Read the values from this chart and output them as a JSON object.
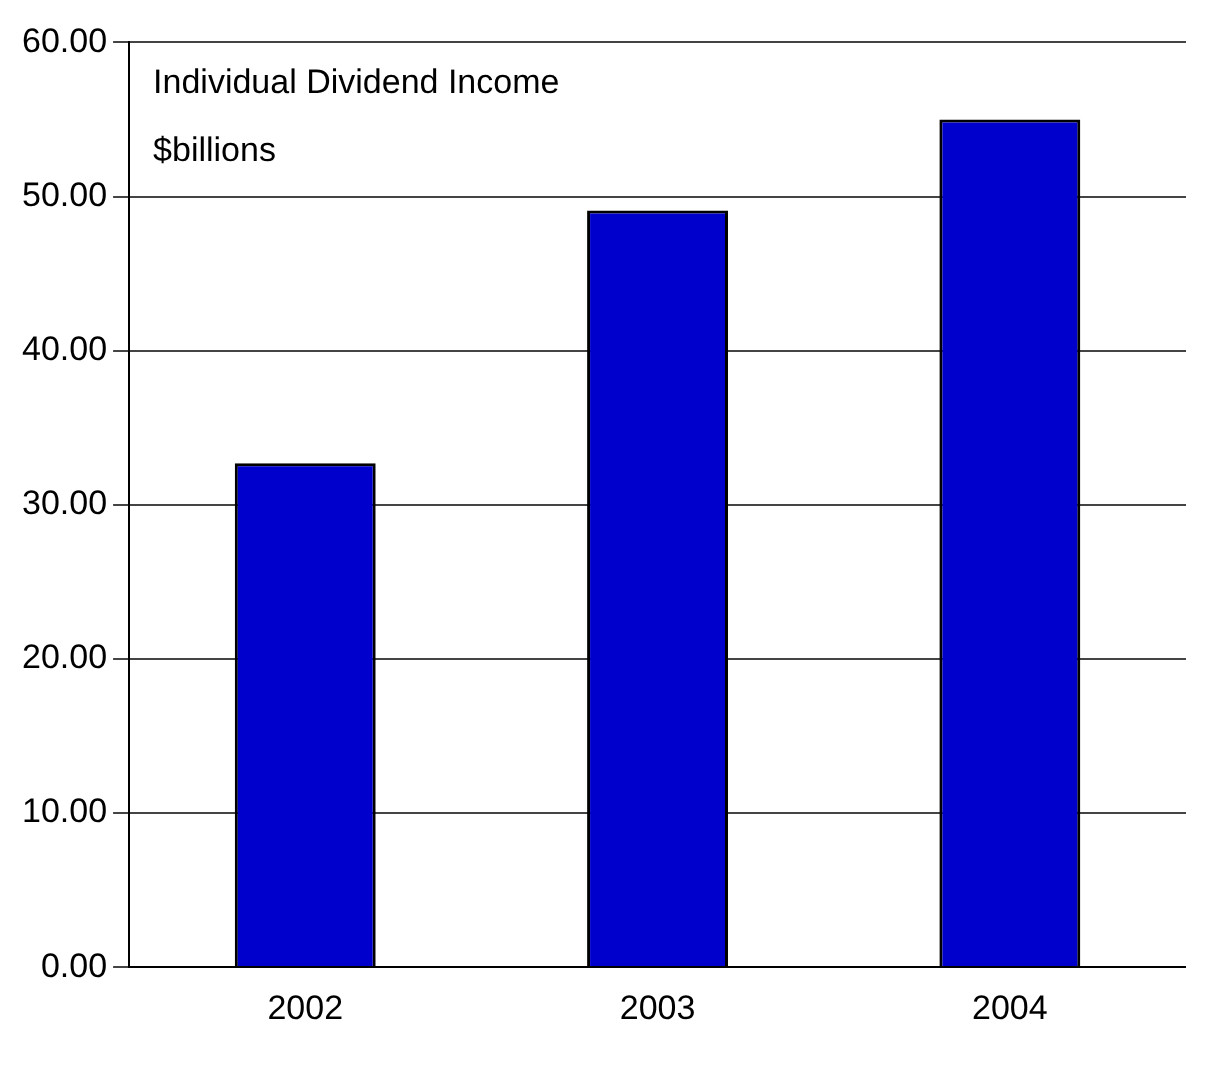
{
  "chart_data": {
    "type": "bar",
    "categories": [
      "2002",
      "2003",
      "2004"
    ],
    "values": [
      32.7,
      49.1,
      55.0
    ],
    "color": "#0000cc",
    "ylim": [
      0,
      60
    ],
    "yticks": [
      {
        "value": 0,
        "label": "0.00"
      },
      {
        "value": 10,
        "label": "10.00"
      },
      {
        "value": 20,
        "label": "20.00"
      },
      {
        "value": 30,
        "label": "30.00"
      },
      {
        "value": 40,
        "label": "40.00"
      },
      {
        "value": 50,
        "label": "50.00"
      },
      {
        "value": 60,
        "label": "60.00"
      }
    ],
    "grid": "y",
    "annotations": [
      "Individual Dividend Income",
      "$billions"
    ]
  }
}
